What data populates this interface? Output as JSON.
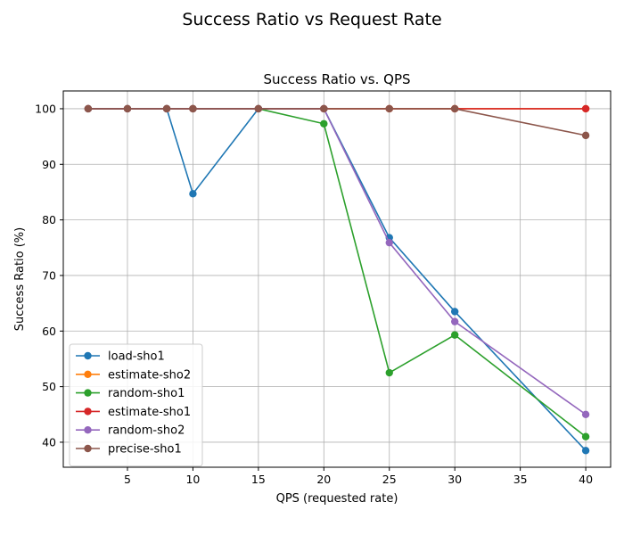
{
  "figure": {
    "suptitle": "Success Ratio vs Request Rate"
  },
  "chart_data": {
    "type": "line",
    "title": "Success Ratio vs. QPS",
    "xlabel": "QPS (requested rate)",
    "ylabel": "Success Ratio (%)",
    "xlim": [
      0.1,
      41.9
    ],
    "ylim": [
      35.5,
      103.2
    ],
    "xticks": [
      5,
      10,
      15,
      20,
      25,
      30,
      35,
      40
    ],
    "yticks": [
      40,
      50,
      60,
      70,
      80,
      90,
      100
    ],
    "grid": true,
    "legend_position": "lower-left",
    "series": [
      {
        "name": "load-sho1",
        "color": "#1f77b4",
        "x": [
          2,
          5,
          8,
          10,
          15,
          20,
          25,
          30,
          40
        ],
        "y": [
          100,
          100,
          100,
          84.7,
          100,
          100,
          76.8,
          63.5,
          38.5
        ]
      },
      {
        "name": "estimate-sho2",
        "color": "#ff7f0e",
        "x": [
          2,
          5,
          8,
          10,
          15,
          20,
          25,
          30,
          40
        ],
        "y": [
          100,
          100,
          100,
          100,
          100,
          100,
          100,
          100,
          100
        ]
      },
      {
        "name": "random-sho1",
        "color": "#2ca02c",
        "x": [
          2,
          5,
          8,
          10,
          15,
          20,
          25,
          30,
          40
        ],
        "y": [
          100,
          100,
          100,
          100,
          100,
          97.3,
          52.5,
          59.3,
          41
        ]
      },
      {
        "name": "estimate-sho1",
        "color": "#d62728",
        "x": [
          2,
          5,
          8,
          10,
          15,
          20,
          25,
          30,
          40
        ],
        "y": [
          100,
          100,
          100,
          100,
          100,
          100,
          100,
          100,
          100
        ]
      },
      {
        "name": "random-sho2",
        "color": "#9467bd",
        "x": [
          2,
          5,
          8,
          10,
          15,
          20,
          25,
          30,
          40
        ],
        "y": [
          100,
          100,
          100,
          100,
          100,
          100,
          75.9,
          61.7,
          45
        ]
      },
      {
        "name": "precise-sho1",
        "color": "#8c564b",
        "x": [
          2,
          5,
          8,
          10,
          15,
          20,
          25,
          30,
          40
        ],
        "y": [
          100,
          100,
          100,
          100,
          100,
          100,
          100,
          100,
          95.2
        ]
      }
    ]
  }
}
